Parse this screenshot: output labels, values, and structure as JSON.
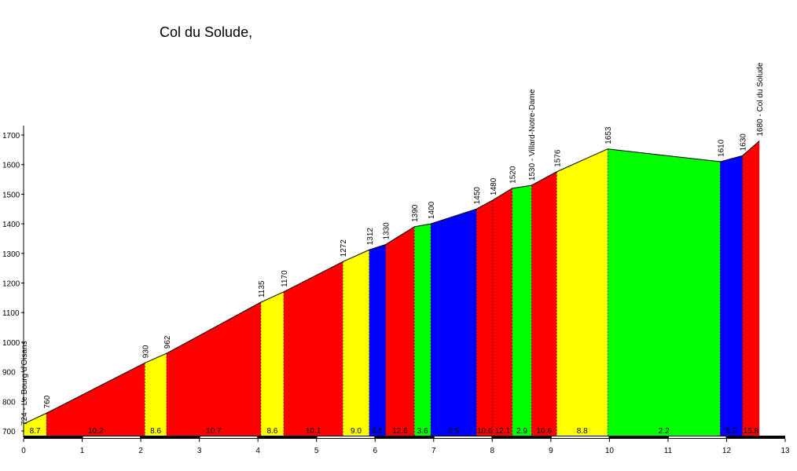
{
  "chart_data": {
    "type": "area",
    "title": "Col du Solude,",
    "ylim": [
      690,
      1710
    ],
    "xlim": [
      0,
      13
    ],
    "y_ticks": [
      700,
      800,
      900,
      1000,
      1100,
      1200,
      1300,
      1400,
      1500,
      1600,
      1700
    ],
    "x_ticks": [
      0,
      1,
      2,
      3,
      4,
      5,
      6,
      7,
      8,
      9,
      10,
      11,
      12,
      13
    ],
    "points": [
      {
        "x": 0,
        "y": 724,
        "label": "724 - Le Bourg d'Oisans"
      },
      {
        "x": 0.39,
        "y": 760,
        "label": "760"
      },
      {
        "x": 2.07,
        "y": 930,
        "label": "930"
      },
      {
        "x": 2.44,
        "y": 962,
        "label": "962"
      },
      {
        "x": 4.05,
        "y": 1135,
        "label": "1135"
      },
      {
        "x": 4.44,
        "y": 1170,
        "label": "1170"
      },
      {
        "x": 5.45,
        "y": 1272,
        "label": "1272"
      },
      {
        "x": 5.9,
        "y": 1312,
        "label": "1312"
      },
      {
        "x": 6.18,
        "y": 1330,
        "label": "1330"
      },
      {
        "x": 6.67,
        "y": 1390,
        "label": "1390"
      },
      {
        "x": 6.95,
        "y": 1400,
        "label": "1400"
      },
      {
        "x": 7.73,
        "y": 1450,
        "label": "1450"
      },
      {
        "x": 8.01,
        "y": 1480,
        "label": "1480"
      },
      {
        "x": 8.34,
        "y": 1520,
        "label": "1520"
      },
      {
        "x": 8.67,
        "y": 1530,
        "label": "1530 - Villard-Notre-Dame"
      },
      {
        "x": 9.1,
        "y": 1576,
        "label": "1576"
      },
      {
        "x": 9.97,
        "y": 1653,
        "label": "1653"
      },
      {
        "x": 11.89,
        "y": 1610,
        "label": "1610"
      },
      {
        "x": 12.27,
        "y": 1630,
        "label": "1630"
      },
      {
        "x": 12.56,
        "y": 1680,
        "label": "1680 - Col du Solude"
      }
    ],
    "segments": [
      {
        "gradient": "8.7",
        "color": "#ffff00"
      },
      {
        "gradient": "10.2",
        "color": "#ff0000"
      },
      {
        "gradient": "8.6",
        "color": "#ffff00"
      },
      {
        "gradient": "10.7",
        "color": "#ff0000"
      },
      {
        "gradient": "8.6",
        "color": "#ffff00"
      },
      {
        "gradient": "10.1",
        "color": "#ff0000"
      },
      {
        "gradient": "9.0",
        "color": "#ffff00"
      },
      {
        "gradient": "6.5",
        "color": "#0000ff"
      },
      {
        "gradient": "12.6",
        "color": "#ff0000"
      },
      {
        "gradient": "3.6",
        "color": "#00ff00"
      },
      {
        "gradient": "6.5",
        "color": "#0000ff"
      },
      {
        "gradient": "10.6",
        "color": "#ff0000"
      },
      {
        "gradient": "12.1",
        "color": "#ff0000"
      },
      {
        "gradient": "2.9",
        "color": "#00ff00"
      },
      {
        "gradient": "10.6",
        "color": "#ff0000"
      },
      {
        "gradient": "8.8",
        "color": "#ffff00"
      },
      {
        "gradient": "2.2",
        "color": "#00ff00"
      },
      {
        "gradient": "5.2",
        "color": "#0000ff"
      },
      {
        "gradient": "15.8",
        "color": "#ff0000"
      }
    ]
  }
}
